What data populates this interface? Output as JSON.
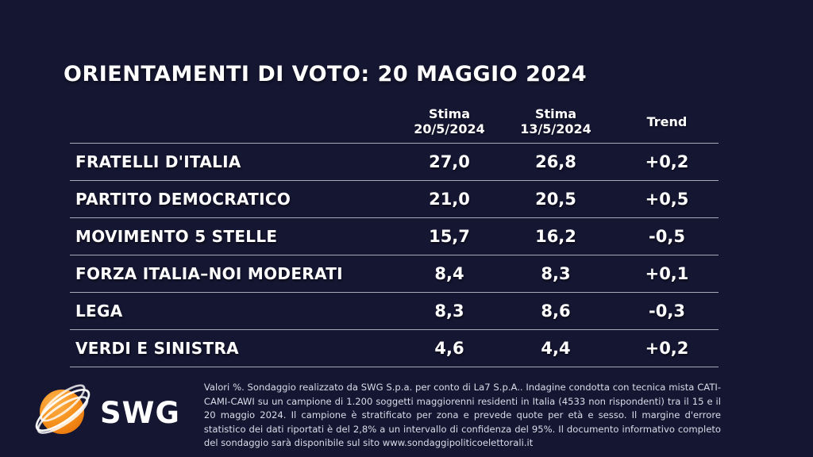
{
  "title": "ORIENTAMENTI DI VOTO: 20 MAGGIO 2024",
  "colors": {
    "background": "#151632",
    "text": "#ffffff",
    "divider": "#a6abbc",
    "footer_text": "#d9dce8",
    "logo_orange": "#f79420"
  },
  "table": {
    "headers": {
      "stima_current_line1": "Stima",
      "stima_current_line2": "20/5/2024",
      "stima_previous_line1": "Stima",
      "stima_previous_line2": "13/5/2024",
      "trend": "Trend"
    },
    "rows": [
      {
        "party": "FRATELLI D'ITALIA",
        "stima_current": "27,0",
        "stima_previous": "26,8",
        "trend": "+0,2"
      },
      {
        "party": "PARTITO DEMOCRATICO",
        "stima_current": "21,0",
        "stima_previous": "20,5",
        "trend": "+0,5"
      },
      {
        "party": "MOVIMENTO 5 STELLE",
        "stima_current": "15,7",
        "stima_previous": "16,2",
        "trend": "-0,5"
      },
      {
        "party": "FORZA ITALIA–NOI MODERATI",
        "stima_current": "8,4",
        "stima_previous": "8,3",
        "trend": "+0,1"
      },
      {
        "party": "LEGA",
        "stima_current": "8,3",
        "stima_previous": "8,6",
        "trend": "-0,3"
      },
      {
        "party": "VERDI E SINISTRA",
        "stima_current": "4,6",
        "stima_previous": "4,4",
        "trend": "+0,2"
      }
    ]
  },
  "footer": {
    "logo_text": "SWG",
    "disclaimer": "Valori %. Sondaggio realizzato da SWG S.p.a. per conto di La7 S.p.A.. Indagine condotta con tecnica mista CATI-CAMI-CAWI su un campione di 1.200 soggetti maggiorenni residenti in Italia (4533 non rispondenti) tra il 15 e il 20 maggio 2024. Il campione è stratificato per zona e prevede quote per età e sesso. Il margine d'errore statistico dei dati riportati è del 2,8% a un intervallo di confidenza del 95%. Il documento informativo completo del sondaggio sarà disponibile sul sito www.sondaggipoliticoelettorali.it"
  },
  "chart_data": {
    "type": "table",
    "title": "ORIENTAMENTI DI VOTO: 20 MAGGIO 2024",
    "categories": [
      "FRATELLI D'ITALIA",
      "PARTITO DEMOCRATICO",
      "MOVIMENTO 5 STELLE",
      "FORZA ITALIA–NOI MODERATI",
      "LEGA",
      "VERDI E SINISTRA"
    ],
    "series": [
      {
        "name": "Stima 20/5/2024",
        "values": [
          27.0,
          21.0,
          15.7,
          8.4,
          8.3,
          4.6
        ]
      },
      {
        "name": "Stima 13/5/2024",
        "values": [
          26.8,
          20.5,
          16.2,
          8.3,
          8.6,
          4.4
        ]
      },
      {
        "name": "Trend",
        "values": [
          0.2,
          0.5,
          -0.5,
          0.1,
          -0.3,
          0.2
        ]
      }
    ],
    "units": "Valori %"
  }
}
